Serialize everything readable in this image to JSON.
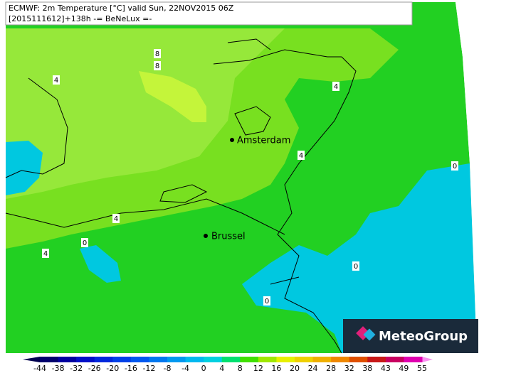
{
  "header": {
    "line1": "ECMWF: 2m Temperature [°C] valid Sun, 22NOV2015 06Z",
    "line2": "[2015111612]+138h -= BeNeLux =-"
  },
  "cities": [
    "Amsterdam",
    "Brussel"
  ],
  "contour_labels": [
    "8",
    "8",
    "4",
    "4",
    "4",
    "0",
    "4",
    "0",
    "4",
    "0",
    "0"
  ],
  "logo": "MeteoGroup",
  "colorbar": {
    "labels": [
      -44,
      -38,
      -32,
      -26,
      -20,
      -16,
      -12,
      -8,
      -4,
      0,
      4,
      8,
      12,
      16,
      20,
      24,
      28,
      32,
      38,
      43,
      49,
      55
    ],
    "colors": [
      "#00006e",
      "#0000a0",
      "#0010c8",
      "#0028dc",
      "#0040e8",
      "#0058f0",
      "#0078f0",
      "#0098f0",
      "#00b8f0",
      "#00d0e0",
      "#00e070",
      "#40e000",
      "#a0e800",
      "#e8f000",
      "#f0d000",
      "#f0b000",
      "#f08800",
      "#e05000",
      "#c81818",
      "#c80060",
      "#e000b0"
    ],
    "low_color": "#000050",
    "high_color": "#f890f0"
  }
}
